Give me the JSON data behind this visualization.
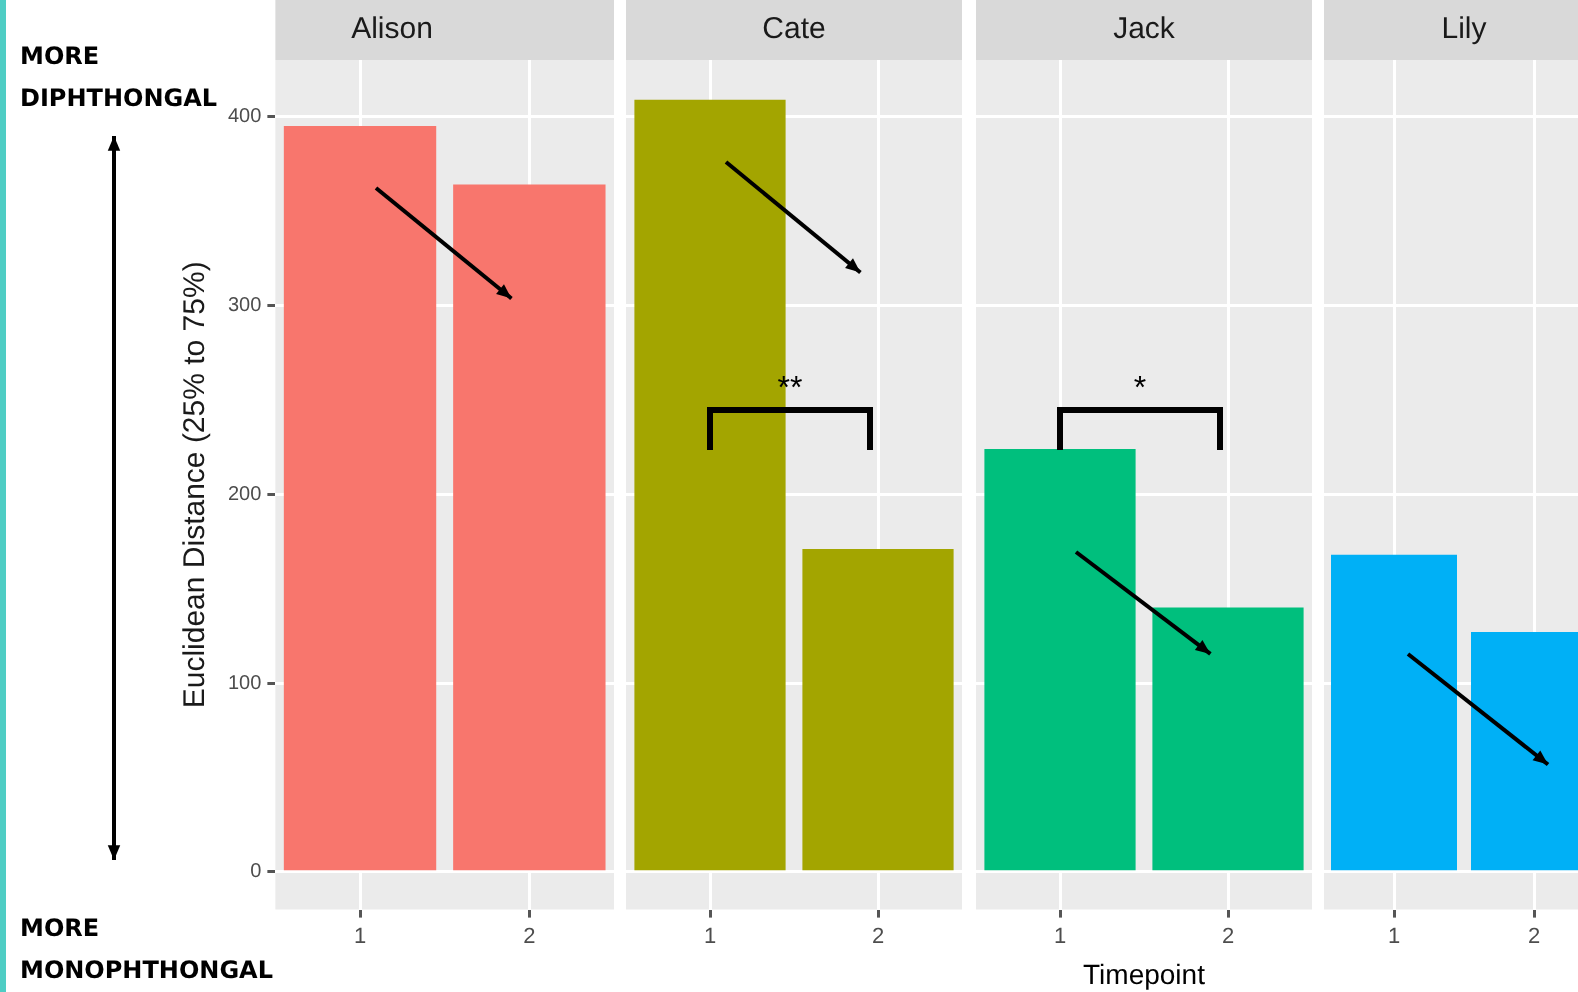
{
  "chart_data": [
    {
      "type": "bar",
      "title": "Alison",
      "ylabel": "Euclidean Distance (25% to 75%)",
      "categories": [
        "1",
        "2"
      ],
      "values": [
        395,
        364
      ],
      "color": "#f8766d",
      "ylim": [
        -20,
        430
      ],
      "yticks": [
        0,
        100,
        200,
        300,
        400
      ],
      "grid": true,
      "annotations": [
        "MORE DIPHTHONGAL",
        "MORE MONOPHTHONGAL"
      ]
    },
    {
      "type": "bar",
      "title": "Cate",
      "categories": [
        "1",
        "2"
      ],
      "values": [
        409,
        171
      ],
      "color": "#a3a500",
      "ylim": [
        -20,
        430
      ],
      "yticks": [
        0,
        100,
        200,
        300,
        400
      ],
      "grid": true,
      "tick_labels": "x",
      "annotations": [
        "**"
      ]
    },
    {
      "type": "bar",
      "title": "Jack",
      "xlabel": "Timepoint",
      "categories": [
        "1",
        "2"
      ],
      "values": [
        224,
        140
      ],
      "color": "#00bf7d",
      "ylim": [
        -20,
        430
      ],
      "yticks": [
        0,
        100,
        200,
        300,
        400
      ],
      "grid": true,
      "tick_labels": "x",
      "annotations": [
        "*"
      ]
    },
    {
      "type": "bar",
      "title": "Lily",
      "categories": [
        "1",
        "2"
      ],
      "values": [
        168,
        127
      ],
      "color": "#00b0f6",
      "ylim": [
        -20,
        430
      ],
      "yticks": [
        0,
        100,
        200,
        300,
        400
      ],
      "grid": true,
      "tick_labels": "x"
    }
  ]
}
